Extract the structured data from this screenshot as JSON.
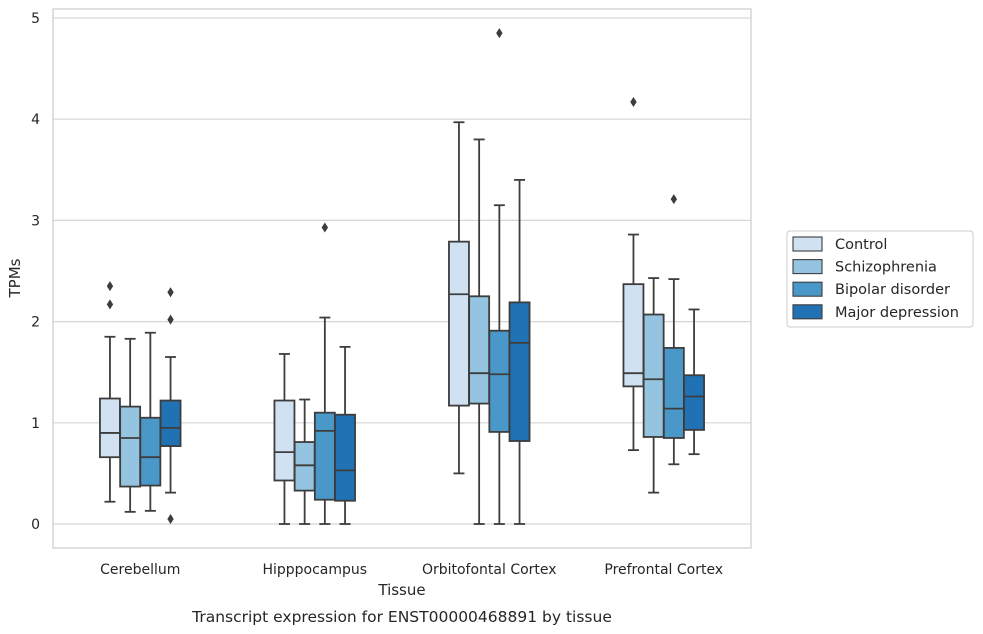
{
  "caption": "Transcript expression for ENST00000468891 by tissue",
  "chart_data": {
    "type": "box",
    "xlabel": "Tissue",
    "ylabel": "TPMs",
    "ylim": [
      -0.22,
      5.1
    ],
    "yticks": [
      0,
      1,
      2,
      3,
      4,
      5
    ],
    "grid": "horizontal",
    "legend_position": "right",
    "categories": [
      "Cerebellum",
      "Hipppocampus",
      "Orbitofontal Cortex",
      "Prefrontal Cortex"
    ],
    "series": [
      {
        "name": "Control",
        "color": "#d0e1f2",
        "boxes": [
          {
            "q1": 0.66,
            "median": 0.9,
            "q3": 1.24,
            "whisker_low": 0.22,
            "whisker_high": 1.85,
            "outliers": [
              2.17,
              2.35
            ]
          },
          {
            "q1": 0.43,
            "median": 0.71,
            "q3": 1.22,
            "whisker_low": 0.0,
            "whisker_high": 1.68,
            "outliers": []
          },
          {
            "q1": 1.17,
            "median": 2.27,
            "q3": 2.79,
            "whisker_low": 0.5,
            "whisker_high": 3.97,
            "outliers": []
          },
          {
            "q1": 1.36,
            "median": 1.49,
            "q3": 2.37,
            "whisker_low": 0.73,
            "whisker_high": 2.86,
            "outliers": [
              4.17
            ]
          }
        ]
      },
      {
        "name": "Schizophrenia",
        "color": "#94c4df",
        "boxes": [
          {
            "q1": 0.37,
            "median": 0.85,
            "q3": 1.16,
            "whisker_low": 0.12,
            "whisker_high": 1.83,
            "outliers": []
          },
          {
            "q1": 0.33,
            "median": 0.58,
            "q3": 0.81,
            "whisker_low": 0.0,
            "whisker_high": 1.23,
            "outliers": []
          },
          {
            "q1": 1.19,
            "median": 1.49,
            "q3": 2.25,
            "whisker_low": 0.0,
            "whisker_high": 3.8,
            "outliers": []
          },
          {
            "q1": 0.86,
            "median": 1.43,
            "q3": 2.07,
            "whisker_low": 0.31,
            "whisker_high": 2.43,
            "outliers": []
          }
        ]
      },
      {
        "name": "Bipolar disorder",
        "color": "#4a98c9",
        "boxes": [
          {
            "q1": 0.38,
            "median": 0.66,
            "q3": 1.05,
            "whisker_low": 0.13,
            "whisker_high": 1.89,
            "outliers": []
          },
          {
            "q1": 0.24,
            "median": 0.92,
            "q3": 1.1,
            "whisker_low": 0.0,
            "whisker_high": 2.04,
            "outliers": [
              2.93
            ]
          },
          {
            "q1": 0.91,
            "median": 1.48,
            "q3": 1.91,
            "whisker_low": 0.0,
            "whisker_high": 3.15,
            "outliers": [
              4.85
            ]
          },
          {
            "q1": 0.85,
            "median": 1.14,
            "q3": 1.74,
            "whisker_low": 0.59,
            "whisker_high": 2.42,
            "outliers": [
              3.21
            ]
          }
        ]
      },
      {
        "name": "Major depression",
        "color": "#2171b5",
        "boxes": [
          {
            "q1": 0.77,
            "median": 0.95,
            "q3": 1.22,
            "whisker_low": 0.31,
            "whisker_high": 1.65,
            "outliers": [
              0.05,
              2.02,
              2.29
            ]
          },
          {
            "q1": 0.23,
            "median": 0.53,
            "q3": 1.08,
            "whisker_low": 0.0,
            "whisker_high": 1.75,
            "outliers": []
          },
          {
            "q1": 0.82,
            "median": 1.79,
            "q3": 2.19,
            "whisker_low": 0.0,
            "whisker_high": 3.4,
            "outliers": []
          },
          {
            "q1": 0.93,
            "median": 1.26,
            "q3": 1.47,
            "whisker_low": 0.69,
            "whisker_high": 2.12,
            "outliers": []
          }
        ]
      }
    ]
  }
}
